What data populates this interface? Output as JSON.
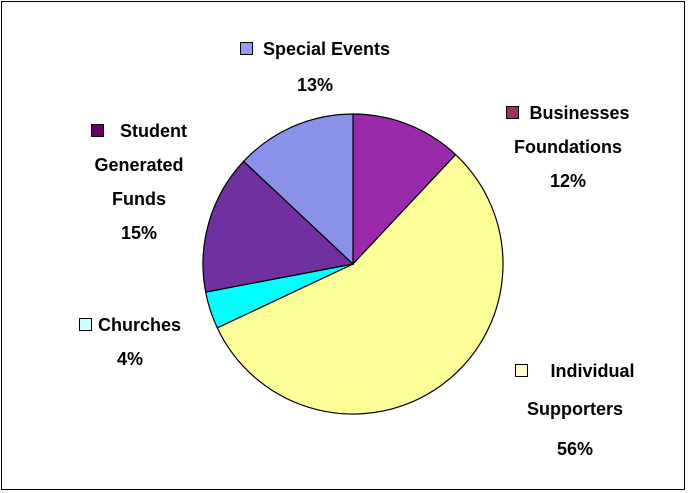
{
  "chart_data": {
    "type": "pie",
    "title": "",
    "start_angle_deg": 0,
    "direction": "clockwise",
    "slices": [
      {
        "label_lines": [
          "Businesses",
          "Foundations"
        ],
        "value": 12,
        "value_label": "12%",
        "color": "#9b2aaa"
      },
      {
        "label_lines": [
          "Individual",
          "Supporters"
        ],
        "value": 56,
        "value_label": "56%",
        "color": "#ffff99"
      },
      {
        "label_lines": [
          "Churches"
        ],
        "value": 4,
        "value_label": "4%",
        "color": "#00ffff"
      },
      {
        "label_lines": [
          "Student",
          "Generated",
          "Funds"
        ],
        "value": 15,
        "value_label": "15%",
        "color": "#7030a0"
      },
      {
        "label_lines": [
          "Special Events"
        ],
        "value": 13,
        "value_label": "13%",
        "color": "#8a91e8"
      }
    ],
    "legend_swatch_colors": [
      "#993366",
      "#ffffcc",
      "#ccffff",
      "#660066",
      "#9999ff"
    ],
    "legend_placement": "around pie (data-label callouts)"
  }
}
